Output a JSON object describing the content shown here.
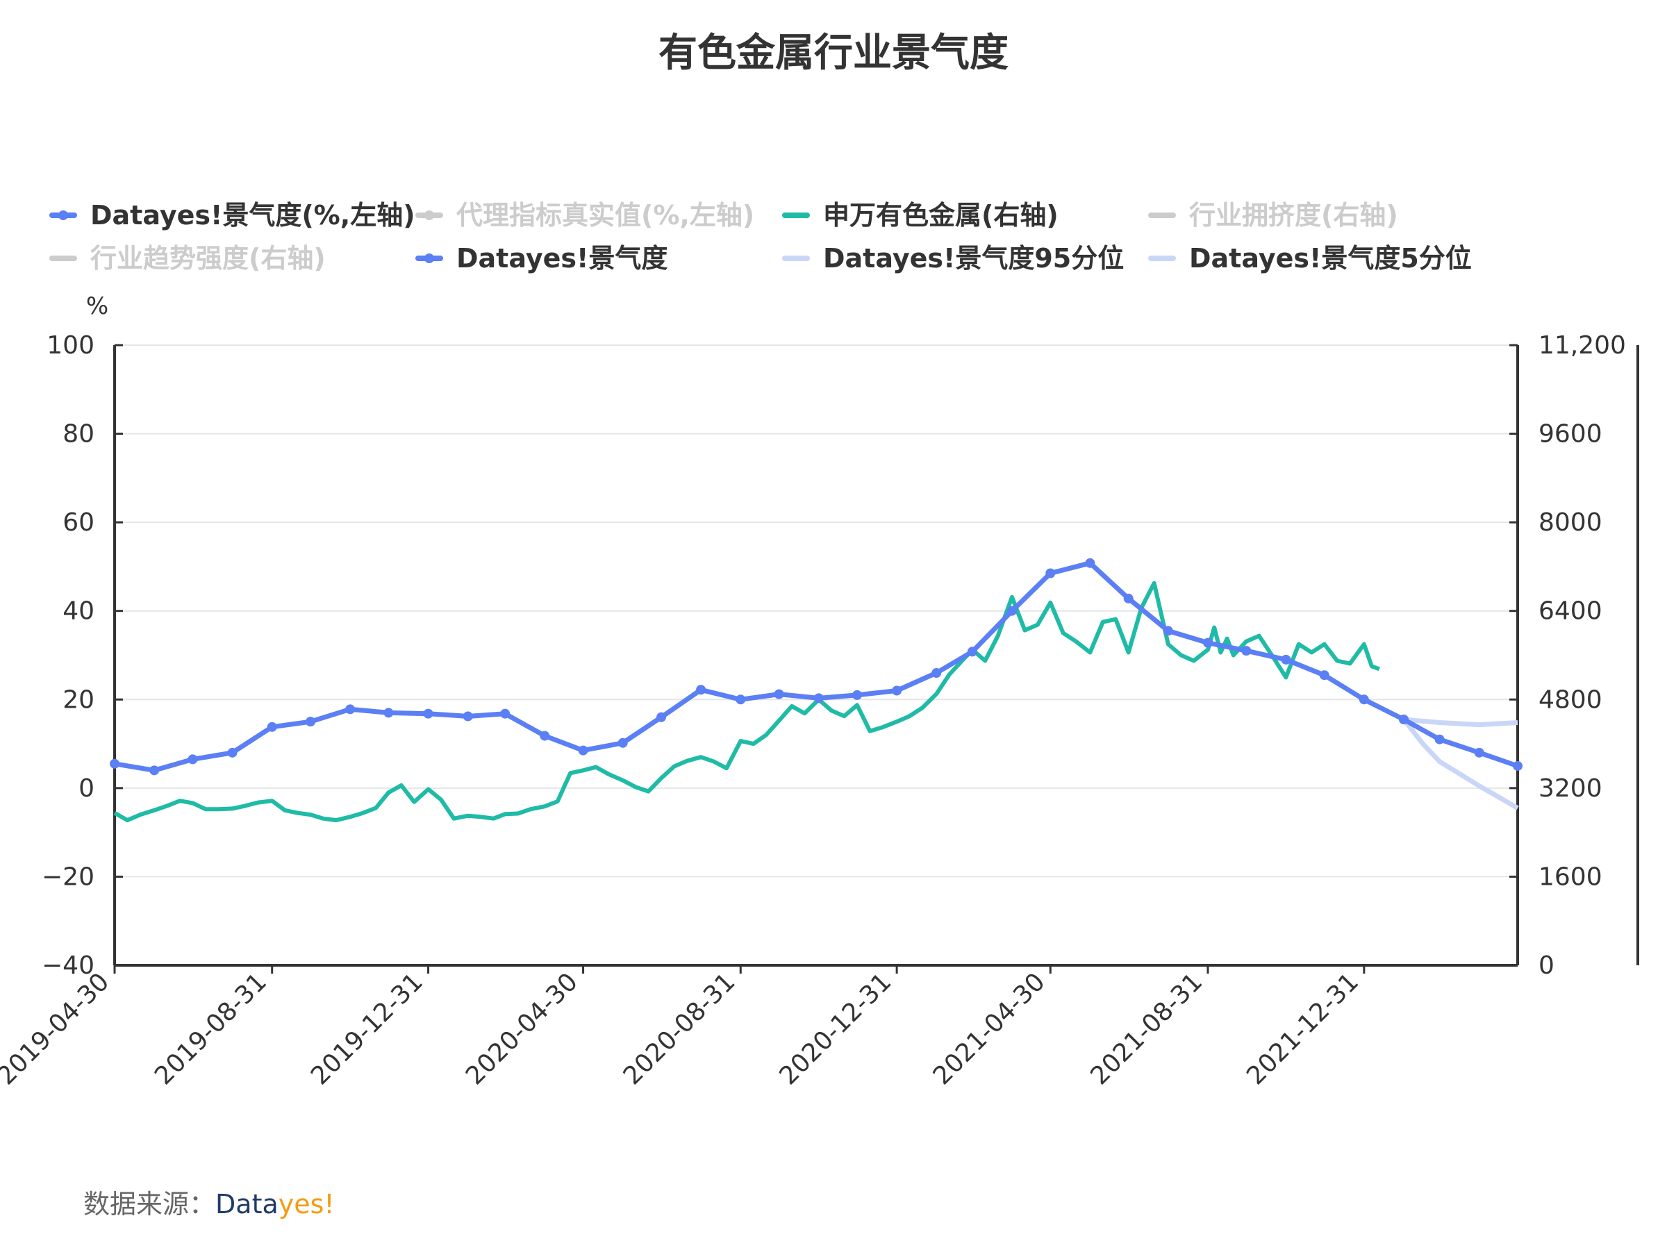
{
  "source": {
    "label": "数据来源：",
    "brand_part1": "Data",
    "brand_part2": "yes!"
  },
  "colors": {
    "blue": "#5b7ff5",
    "teal": "#1fbba6",
    "band": "#c9d6f8",
    "inactive": "#cccccc",
    "grid": "#e6e6e6",
    "axis": "#333333"
  },
  "chart_data": {
    "type": "line",
    "title": "有色金属行业景气度",
    "left_axis": {
      "unit": "%",
      "ylim": [
        -40,
        100
      ],
      "ticks": [
        "100",
        "80",
        "60",
        "40",
        "20",
        "0",
        "−20",
        "−40"
      ]
    },
    "right_axis": {
      "ylim": [
        0,
        11200
      ],
      "ticks": [
        "11,200",
        "9600",
        "8000",
        "6400",
        "4800",
        "3200",
        "1600",
        "0"
      ]
    },
    "x_ticks": [
      "2019-04-30",
      "2019-08-31",
      "2019-12-31",
      "2020-04-30",
      "2020-08-31",
      "2020-12-31",
      "2021-04-30",
      "2021-08-31",
      "2021-12-31"
    ],
    "grid": true,
    "legend_position": "top",
    "legend": [
      {
        "name": "Datayes!景气度(%,左轴)",
        "active": true,
        "color": "#5b7ff5",
        "marker": "dot"
      },
      {
        "name": "代理指标真实值(%,左轴)",
        "active": false,
        "color": "#cccccc",
        "marker": "dot"
      },
      {
        "name": "申万有色金属(右轴)",
        "active": true,
        "color": "#1fbba6",
        "marker": "line"
      },
      {
        "name": "行业拥挤度(右轴)",
        "active": false,
        "color": "#cccccc",
        "marker": "line"
      },
      {
        "name": "行业趋势强度(右轴)",
        "active": false,
        "color": "#cccccc",
        "marker": "line"
      },
      {
        "name": "Datayes!景气度",
        "active": true,
        "color": "#5b7ff5",
        "marker": "dot"
      },
      {
        "name": "Datayes!景气度95分位",
        "active": true,
        "color": "#c9d6f8",
        "marker": "line"
      },
      {
        "name": "Datayes!景气度5分位",
        "active": true,
        "color": "#c9d6f8",
        "marker": "line"
      }
    ],
    "series": [
      {
        "name": "Datayes!景气度(%,左轴)",
        "axis": "left",
        "x": [
          "2019-04-30",
          "2019-05-31",
          "2019-06-30",
          "2019-07-31",
          "2019-08-31",
          "2019-09-30",
          "2019-10-31",
          "2019-11-30",
          "2019-12-31",
          "2020-01-31",
          "2020-02-29",
          "2020-03-31",
          "2020-04-30",
          "2020-05-31",
          "2020-06-30",
          "2020-07-31",
          "2020-08-31",
          "2020-09-30",
          "2020-10-31",
          "2020-11-30",
          "2020-12-31",
          "2021-01-31",
          "2021-02-28",
          "2021-03-31",
          "2021-04-30",
          "2021-05-31",
          "2021-06-30",
          "2021-07-31",
          "2021-08-31",
          "2021-09-30",
          "2021-10-31",
          "2021-11-30",
          "2021-12-31"
        ],
        "values": [
          5.5,
          4.0,
          6.5,
          8.0,
          13.8,
          15.0,
          17.8,
          17.0,
          16.8,
          16.2,
          16.8,
          11.8,
          8.5,
          10.2,
          16.0,
          22.2,
          20.0,
          21.2,
          20.3,
          21.0,
          22.0,
          26.0,
          30.8,
          40.0,
          48.5,
          50.8,
          42.8,
          35.5,
          32.8,
          31.0,
          29.0,
          25.5,
          20.0
        ]
      },
      {
        "name": "Datayes!景气度",
        "axis": "left",
        "x": [
          "2021-12-31",
          "2022-01-31",
          "2022-02-28",
          "2022-03-31",
          "2022-04-30"
        ],
        "values": [
          20.0,
          15.5,
          11.0,
          8.0,
          5.0
        ]
      },
      {
        "name": "Datayes!景气度95分位",
        "axis": "left",
        "x": [
          "2022-01-31",
          "2022-02-28",
          "2022-03-31",
          "2022-04-30"
        ],
        "values": [
          15.5,
          14.8,
          14.3,
          14.8
        ]
      },
      {
        "name": "Datayes!景气度5分位",
        "axis": "left",
        "x": [
          "2022-01-31",
          "2022-02-15",
          "2022-02-28",
          "2022-03-31",
          "2022-04-30"
        ],
        "values": [
          15.5,
          10.0,
          6.0,
          0.5,
          -4.5
        ]
      },
      {
        "name": "申万有色金属(右轴)",
        "axis": "right",
        "x": [
          "2019-04-30",
          "2019-05-10",
          "2019-05-20",
          "2019-05-31",
          "2019-06-10",
          "2019-06-20",
          "2019-06-30",
          "2019-07-10",
          "2019-07-20",
          "2019-07-31",
          "2019-08-10",
          "2019-08-20",
          "2019-08-31",
          "2019-09-10",
          "2019-09-20",
          "2019-09-30",
          "2019-10-10",
          "2019-10-20",
          "2019-10-31",
          "2019-11-10",
          "2019-11-20",
          "2019-11-30",
          "2019-12-10",
          "2019-12-20",
          "2019-12-31",
          "2020-01-10",
          "2020-01-20",
          "2020-01-31",
          "2020-02-10",
          "2020-02-20",
          "2020-02-29",
          "2020-03-10",
          "2020-03-20",
          "2020-03-31",
          "2020-04-10",
          "2020-04-20",
          "2020-04-30",
          "2020-05-10",
          "2020-05-20",
          "2020-05-31",
          "2020-06-10",
          "2020-06-20",
          "2020-06-30",
          "2020-07-10",
          "2020-07-20",
          "2020-07-31",
          "2020-08-10",
          "2020-08-20",
          "2020-08-31",
          "2020-09-10",
          "2020-09-20",
          "2020-09-30",
          "2020-10-10",
          "2020-10-20",
          "2020-10-31",
          "2020-11-10",
          "2020-11-20",
          "2020-11-30",
          "2020-12-10",
          "2020-12-20",
          "2020-12-31",
          "2021-01-10",
          "2021-01-20",
          "2021-01-31",
          "2021-02-10",
          "2021-02-20",
          "2021-02-28",
          "2021-03-10",
          "2021-03-20",
          "2021-03-31",
          "2021-04-10",
          "2021-04-20",
          "2021-04-30",
          "2021-05-10",
          "2021-05-20",
          "2021-05-31",
          "2021-06-10",
          "2021-06-20",
          "2021-06-30",
          "2021-07-10",
          "2021-07-20",
          "2021-07-31",
          "2021-08-10",
          "2021-08-20",
          "2021-08-31",
          "2021-09-05",
          "2021-09-10",
          "2021-09-15",
          "2021-09-20",
          "2021-09-30",
          "2021-10-10",
          "2021-10-20",
          "2021-10-31",
          "2021-11-10",
          "2021-11-20",
          "2021-11-30",
          "2021-12-10",
          "2021-12-20",
          "2021-12-31",
          "2022-01-06",
          "2022-01-12"
        ],
        "values": [
          2750,
          2620,
          2720,
          2800,
          2880,
          2970,
          2930,
          2820,
          2820,
          2830,
          2880,
          2940,
          2970,
          2800,
          2750,
          2720,
          2650,
          2620,
          2680,
          2750,
          2840,
          3120,
          3250,
          2950,
          3180,
          2990,
          2650,
          2700,
          2680,
          2650,
          2730,
          2740,
          2820,
          2870,
          2960,
          3470,
          3520,
          3580,
          3450,
          3340,
          3220,
          3140,
          3380,
          3590,
          3690,
          3760,
          3680,
          3560,
          4050,
          4000,
          4160,
          4420,
          4680,
          4550,
          4800,
          4600,
          4500,
          4700,
          4230,
          4300,
          4400,
          4500,
          4650,
          4900,
          5250,
          5500,
          5700,
          5500,
          5950,
          6650,
          6050,
          6150,
          6550,
          6000,
          5850,
          5650,
          6200,
          6250,
          5650,
          6450,
          6900,
          5800,
          5600,
          5500,
          5700,
          6100,
          5650,
          5900,
          5600,
          5850,
          5950,
          5600,
          5200,
          5800,
          5650,
          5800,
          5500,
          5450,
          5800,
          5400,
          5350
        ]
      }
    ]
  }
}
